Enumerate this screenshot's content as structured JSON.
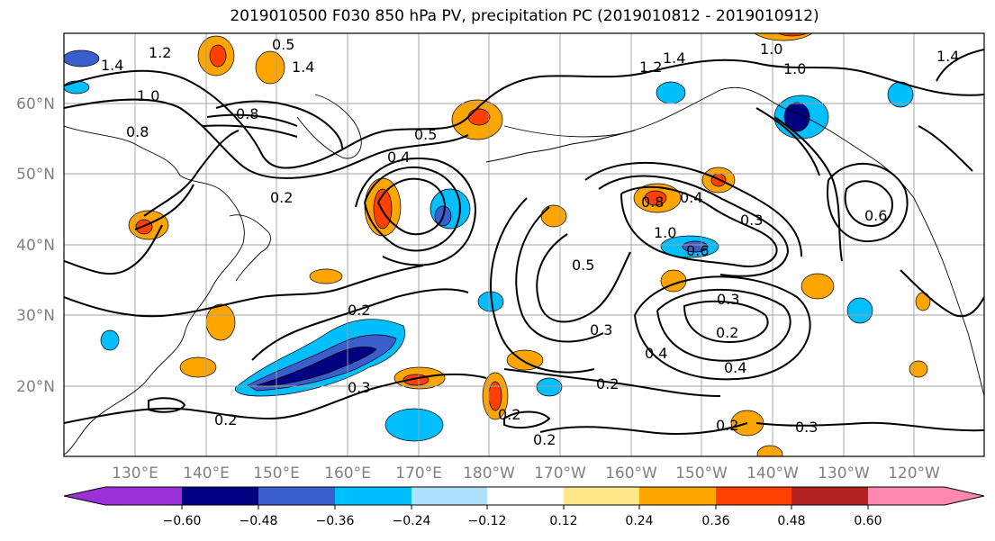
{
  "title": "2019010500 F030 850 hPa PV, precipitation PC (2019010812 - 2019010912)",
  "lat_labels": [
    "60°N",
    "50°N",
    "40°N",
    "30°N",
    "20°N"
  ],
  "lon_labels": [
    "130°E",
    "140°E",
    "150°E",
    "160°E",
    "170°E",
    "180°W",
    "170°W",
    "160°W",
    "150°W",
    "140°W",
    "130°W",
    "120°W"
  ],
  "colorbar": {
    "ticks": [
      "−0.60",
      "−0.48",
      "−0.36",
      "−0.24",
      "−0.12",
      "0.12",
      "0.24",
      "0.36",
      "0.48",
      "0.60"
    ],
    "colors": [
      "#9b30d9",
      "#000080",
      "#3a5fcd",
      "#00bfff",
      "#b0e2ff",
      "#ffffff",
      "#ffe88a",
      "#ffa500",
      "#ff4000",
      "#b22222",
      "#ff88b0"
    ]
  },
  "contour_labels": [
    {
      "text": "1.4"
    },
    {
      "text": "1.2"
    },
    {
      "text": "1.0"
    },
    {
      "text": "0.8"
    },
    {
      "text": "0.5"
    },
    {
      "text": "1.4"
    },
    {
      "text": "0.8"
    },
    {
      "text": "1.0"
    },
    {
      "text": "1.2"
    },
    {
      "text": "1.0"
    },
    {
      "text": "1.4"
    },
    {
      "text": "0.5"
    },
    {
      "text": "0.4"
    },
    {
      "text": "0.2"
    },
    {
      "text": "0.4"
    },
    {
      "text": "0.8"
    },
    {
      "text": "1.0"
    },
    {
      "text": "0.6"
    },
    {
      "text": "0.3"
    },
    {
      "text": "0.5"
    },
    {
      "text": "0.3"
    },
    {
      "text": "0.2"
    },
    {
      "text": "0.3"
    },
    {
      "text": "0.4"
    },
    {
      "text": "0.4"
    },
    {
      "text": "0.2"
    },
    {
      "text": "0.2"
    },
    {
      "text": "0.3"
    },
    {
      "text": "0.2"
    },
    {
      "text": "0.2"
    },
    {
      "text": "0.2"
    },
    {
      "text": "0.3"
    },
    {
      "text": "0.2"
    },
    {
      "text": "0.6"
    },
    {
      "text": "1.4"
    }
  ]
}
